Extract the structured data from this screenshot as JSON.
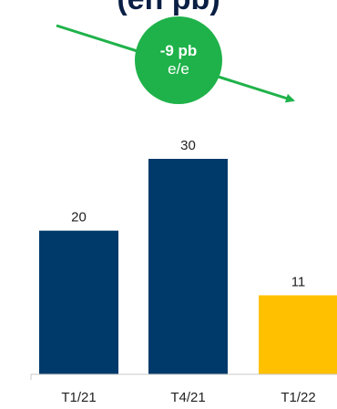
{
  "title_fragment": "(en pb)",
  "badge": {
    "value": "-9 pb",
    "unit": "e/e",
    "color": "#1fb24a"
  },
  "colors": {
    "bar_default": "#003a6b",
    "bar_highlight": "#ffc000",
    "trend_arrow": "#1fb24a",
    "axis": "#c8c8c8"
  },
  "chart_data": {
    "type": "bar",
    "title": "(en pb)",
    "categories": [
      "T1/21",
      "T4/21",
      "T1/22"
    ],
    "values": [
      20,
      30,
      11
    ],
    "value_labels": [
      "20",
      "30",
      "11"
    ],
    "highlight_index": 2,
    "ylim": [
      0,
      30
    ],
    "grid": false,
    "legend": "none",
    "annotation": {
      "text": "-9 pb e/e",
      "kind": "downward-trend-arrow"
    }
  }
}
